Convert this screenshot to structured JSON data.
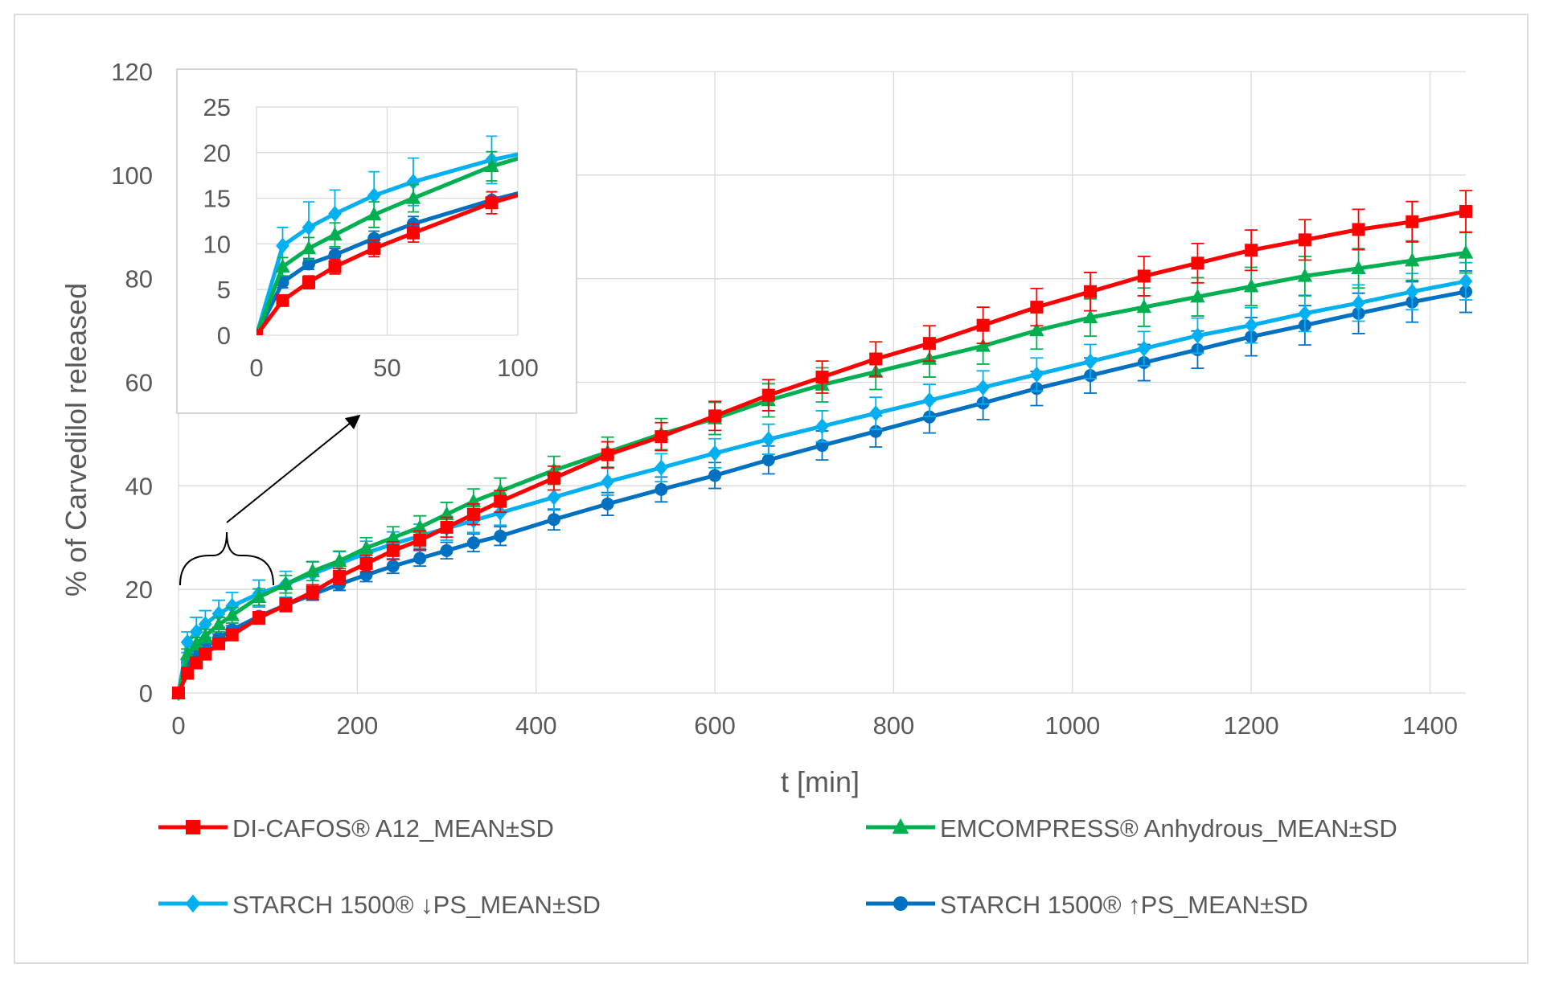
{
  "chart_data": {
    "type": "line",
    "title": "",
    "xlabel": "t [min]",
    "ylabel": "% of Carvedilol released",
    "xlim": [
      0,
      1440
    ],
    "ylim": [
      0,
      120
    ],
    "x_ticks": [
      0,
      200,
      400,
      600,
      800,
      1000,
      1200,
      1400
    ],
    "y_ticks": [
      0,
      20,
      40,
      60,
      80,
      100,
      120
    ],
    "x_tick_labels": [
      "0",
      "200",
      "400",
      "600",
      "800",
      "1000",
      "1200",
      "1400"
    ],
    "y_tick_labels": [
      "0",
      "20",
      "40",
      "60",
      "80",
      "100",
      "120"
    ],
    "grid": true,
    "legend_position": "bottom",
    "series": [
      {
        "name": "DI-CAFOS® A12_MEAN±SD",
        "color": "#ff0000",
        "marker": "square",
        "x": [
          0,
          10,
          20,
          30,
          45,
          60,
          90,
          120,
          150,
          180,
          210,
          240,
          270,
          300,
          330,
          360,
          420,
          480,
          540,
          600,
          660,
          720,
          780,
          840,
          900,
          960,
          1020,
          1080,
          1140,
          1200,
          1260,
          1320,
          1380,
          1440
        ],
        "values": [
          0,
          3.8,
          5.8,
          7.5,
          9.5,
          11.2,
          14.5,
          17.0,
          19.5,
          22.5,
          25.0,
          27.5,
          29.5,
          32.0,
          34.5,
          37.0,
          41.5,
          46.0,
          49.5,
          53.5,
          57.5,
          61.0,
          64.5,
          67.5,
          71.0,
          74.5,
          77.5,
          80.5,
          83.0,
          85.5,
          87.5,
          89.5,
          91.0,
          93.0
        ],
        "sd": [
          0,
          0.6,
          0.7,
          0.8,
          0.9,
          1.0,
          1.2,
          1.3,
          1.4,
          1.5,
          1.6,
          1.7,
          1.8,
          1.9,
          2.0,
          2.1,
          2.3,
          2.5,
          2.7,
          2.8,
          3.0,
          3.1,
          3.3,
          3.4,
          3.5,
          3.6,
          3.7,
          3.8,
          3.8,
          3.9,
          3.9,
          3.9,
          3.9,
          4.0
        ]
      },
      {
        "name": "EMCOMPRESS® Anhydrous_MEAN±SD",
        "color": "#00b050",
        "marker": "triangle",
        "x": [
          0,
          10,
          20,
          30,
          45,
          60,
          90,
          120,
          150,
          180,
          210,
          240,
          270,
          300,
          330,
          360,
          420,
          480,
          540,
          600,
          660,
          720,
          780,
          840,
          900,
          960,
          1020,
          1080,
          1140,
          1200,
          1260,
          1320,
          1380,
          1440
        ],
        "values": [
          0,
          7.5,
          9.5,
          11.0,
          13.2,
          15.0,
          18.5,
          21.0,
          23.5,
          25.5,
          28.0,
          30.0,
          32.0,
          34.5,
          37.0,
          39.0,
          43.0,
          46.5,
          50.0,
          53.0,
          56.5,
          59.5,
          62.0,
          64.5,
          67.0,
          70.0,
          72.5,
          74.5,
          76.5,
          78.5,
          80.5,
          82.0,
          83.5,
          85.0
        ],
        "sd": [
          0,
          1.0,
          1.2,
          1.3,
          1.4,
          1.5,
          1.6,
          1.7,
          1.8,
          1.9,
          2.0,
          2.1,
          2.2,
          2.3,
          2.4,
          2.5,
          2.7,
          2.9,
          3.0,
          3.1,
          3.2,
          3.3,
          3.4,
          3.5,
          3.5,
          3.6,
          3.6,
          3.7,
          3.7,
          3.7,
          3.8,
          3.8,
          3.8,
          3.9
        ]
      },
      {
        "name": "STARCH 1500® ↓PS_MEAN±SD",
        "color": "#00b0f0",
        "marker": "diamond",
        "x": [
          0,
          10,
          20,
          30,
          45,
          60,
          90,
          120,
          150,
          180,
          210,
          240,
          270,
          300,
          330,
          360,
          420,
          480,
          540,
          600,
          660,
          720,
          780,
          840,
          900,
          960,
          1020,
          1080,
          1140,
          1200,
          1260,
          1320,
          1380,
          1440
        ],
        "values": [
          0,
          9.8,
          11.8,
          13.3,
          15.3,
          16.8,
          19.2,
          21.0,
          23.0,
          25.0,
          27.0,
          28.8,
          30.3,
          31.8,
          33.3,
          34.8,
          37.8,
          40.8,
          43.5,
          46.3,
          49.0,
          51.5,
          54.0,
          56.5,
          59.0,
          61.5,
          64.0,
          66.5,
          69.0,
          71.0,
          73.3,
          75.3,
          77.5,
          79.5
        ],
        "sd": [
          0,
          2.0,
          2.8,
          2.6,
          2.6,
          2.6,
          2.6,
          2.5,
          2.4,
          2.3,
          2.3,
          2.3,
          2.3,
          2.3,
          2.3,
          2.4,
          2.5,
          2.6,
          2.7,
          2.8,
          2.9,
          3.0,
          3.1,
          3.1,
          3.2,
          3.2,
          3.3,
          3.3,
          3.4,
          3.4,
          3.5,
          3.5,
          3.5,
          3.6
        ]
      },
      {
        "name": "STARCH 1500® ↑PS_MEAN±SD",
        "color": "#0070c0",
        "marker": "circle",
        "x": [
          0,
          10,
          20,
          30,
          45,
          60,
          90,
          120,
          150,
          180,
          210,
          240,
          270,
          300,
          330,
          360,
          420,
          480,
          540,
          600,
          660,
          720,
          780,
          840,
          900,
          960,
          1020,
          1080,
          1140,
          1200,
          1260,
          1320,
          1380,
          1440
        ],
        "values": [
          0,
          5.8,
          7.8,
          8.8,
          10.6,
          12.2,
          14.8,
          17.0,
          19.0,
          21.0,
          22.8,
          24.5,
          26.0,
          27.5,
          29.0,
          30.3,
          33.5,
          36.5,
          39.3,
          42.0,
          45.0,
          47.8,
          50.5,
          53.3,
          56.0,
          58.8,
          61.3,
          63.8,
          66.3,
          68.8,
          71.0,
          73.3,
          75.5,
          77.5
        ],
        "sd": [
          0,
          0.6,
          0.6,
          0.7,
          0.8,
          0.8,
          0.9,
          1.0,
          1.1,
          1.2,
          1.3,
          1.4,
          1.5,
          1.6,
          1.7,
          1.8,
          2.0,
          2.2,
          2.4,
          2.5,
          2.7,
          2.8,
          3.0,
          3.1,
          3.2,
          3.3,
          3.4,
          3.5,
          3.6,
          3.7,
          3.8,
          3.9,
          3.9,
          4.0
        ]
      }
    ],
    "inset": {
      "xlim": [
        0,
        100
      ],
      "ylim": [
        0,
        25
      ],
      "x_ticks": [
        0,
        50,
        100
      ],
      "y_ticks": [
        0,
        5,
        10,
        15,
        20,
        25
      ],
      "x_tick_labels": [
        "0",
        "50",
        "100"
      ],
      "y_tick_labels": [
        "0",
        "5",
        "10",
        "15",
        "20",
        "25"
      ],
      "zoom_range": [
        0,
        100
      ]
    }
  }
}
